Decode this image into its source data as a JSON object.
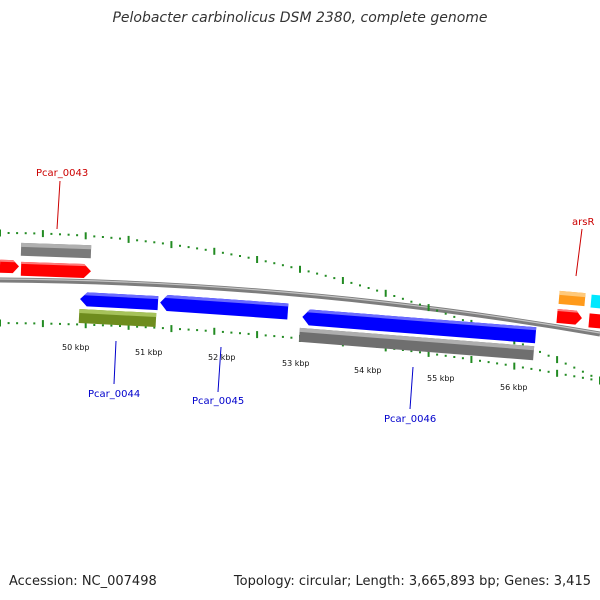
{
  "title": "Pelobacter carbinolicus DSM 2380, complete genome",
  "footer": {
    "accession": "Accession: NC_007498",
    "summary": "Topology: circular; Length: 3,665,893 bp; Genes: 3,415"
  },
  "scale_ticks": [
    "50 kbp",
    "51 kbp",
    "52 kbp",
    "53 kbp",
    "54 kbp",
    "55 kbp",
    "56 kbp"
  ],
  "gene_labels": [
    "Pcar_0043",
    "Pcar_0044",
    "Pcar_0045",
    "Pcar_0046",
    "arsR"
  ],
  "colors": {
    "red": "#ff0000",
    "gray": "#7a7a7a",
    "blue": "#0000ff",
    "olive": "#6e8c1e",
    "orange": "#ff9a1a",
    "cyan": "#00e8ff",
    "tick_green": "#228b22",
    "label_red": "#cc0000",
    "label_blue": "#0000cc"
  }
}
